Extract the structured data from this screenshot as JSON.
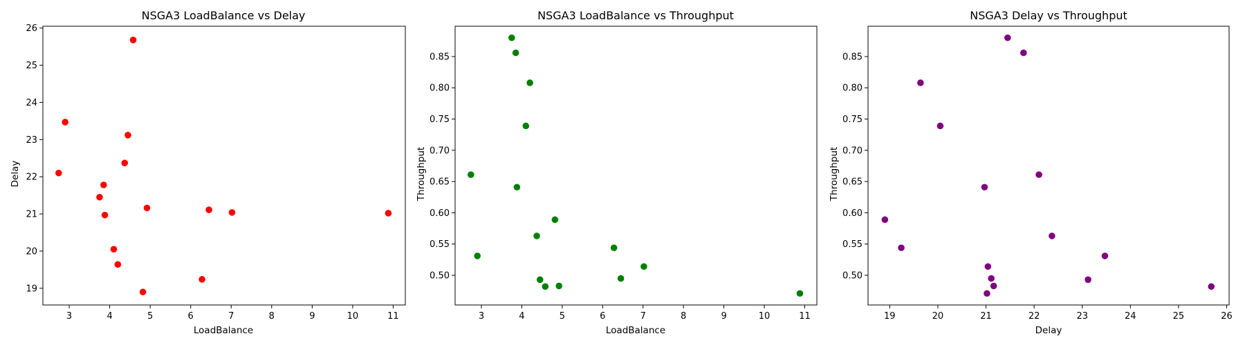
{
  "chart_data": [
    {
      "type": "scatter",
      "title": "NSGA3 LoadBalance vs Delay",
      "xlabel": "LoadBalance",
      "ylabel": "Delay",
      "xlim": [
        2.35,
        11.3
      ],
      "ylim": [
        18.55,
        26.05
      ],
      "xticks": [
        3,
        4,
        5,
        6,
        7,
        8,
        9,
        10,
        11
      ],
      "yticks": [
        19,
        20,
        21,
        22,
        23,
        24,
        25,
        26
      ],
      "color": "#ff0000",
      "points": [
        {
          "x": 4.58,
          "y": 25.68
        },
        {
          "x": 2.9,
          "y": 23.47
        },
        {
          "x": 4.45,
          "y": 23.12
        },
        {
          "x": 4.37,
          "y": 22.37
        },
        {
          "x": 2.74,
          "y": 22.1
        },
        {
          "x": 3.85,
          "y": 21.78
        },
        {
          "x": 3.75,
          "y": 21.45
        },
        {
          "x": 4.92,
          "y": 21.16
        },
        {
          "x": 6.45,
          "y": 21.11
        },
        {
          "x": 7.02,
          "y": 21.04
        },
        {
          "x": 10.88,
          "y": 21.02
        },
        {
          "x": 3.88,
          "y": 20.97
        },
        {
          "x": 4.1,
          "y": 20.05
        },
        {
          "x": 4.2,
          "y": 19.64
        },
        {
          "x": 6.28,
          "y": 19.24
        },
        {
          "x": 4.82,
          "y": 18.9
        }
      ]
    },
    {
      "type": "scatter",
      "title": "NSGA3 LoadBalance vs Throughput",
      "xlabel": "LoadBalance",
      "ylabel": "Throughput",
      "xlim": [
        2.35,
        11.3
      ],
      "ylim": [
        0.4525,
        0.8985
      ],
      "xticks": [
        3,
        4,
        5,
        6,
        7,
        8,
        9,
        10,
        11
      ],
      "yticks": [
        0.5,
        0.55,
        0.6,
        0.65,
        0.7,
        0.75,
        0.8,
        0.85
      ],
      "ytick_labels": [
        "0.50",
        "0.55",
        "0.60",
        "0.65",
        "0.70",
        "0.75",
        "0.80",
        "0.85"
      ],
      "color": "#008000",
      "points": [
        {
          "x": 3.75,
          "y": 0.88
        },
        {
          "x": 3.85,
          "y": 0.856
        },
        {
          "x": 4.2,
          "y": 0.808
        },
        {
          "x": 4.1,
          "y": 0.739
        },
        {
          "x": 2.74,
          "y": 0.661
        },
        {
          "x": 3.88,
          "y": 0.641
        },
        {
          "x": 4.82,
          "y": 0.589
        },
        {
          "x": 4.37,
          "y": 0.563
        },
        {
          "x": 6.28,
          "y": 0.544
        },
        {
          "x": 2.9,
          "y": 0.531
        },
        {
          "x": 7.02,
          "y": 0.514
        },
        {
          "x": 6.45,
          "y": 0.495
        },
        {
          "x": 4.45,
          "y": 0.493
        },
        {
          "x": 4.58,
          "y": 0.482
        },
        {
          "x": 4.92,
          "y": 0.483
        },
        {
          "x": 10.88,
          "y": 0.471
        }
      ]
    },
    {
      "type": "scatter",
      "title": "NSGA3 Delay vs Throughput",
      "xlabel": "Delay",
      "ylabel": "Throughput",
      "xlim": [
        18.55,
        26.05
      ],
      "ylim": [
        0.4525,
        0.8985
      ],
      "xticks": [
        19,
        20,
        21,
        22,
        23,
        24,
        25,
        26
      ],
      "yticks": [
        0.5,
        0.55,
        0.6,
        0.65,
        0.7,
        0.75,
        0.8,
        0.85
      ],
      "ytick_labels": [
        "0.50",
        "0.55",
        "0.60",
        "0.65",
        "0.70",
        "0.75",
        "0.80",
        "0.85"
      ],
      "color": "#800080",
      "points": [
        {
          "x": 21.45,
          "y": 0.88
        },
        {
          "x": 21.78,
          "y": 0.856
        },
        {
          "x": 19.64,
          "y": 0.808
        },
        {
          "x": 20.05,
          "y": 0.739
        },
        {
          "x": 22.1,
          "y": 0.661
        },
        {
          "x": 20.97,
          "y": 0.641
        },
        {
          "x": 18.9,
          "y": 0.589
        },
        {
          "x": 22.37,
          "y": 0.563
        },
        {
          "x": 19.24,
          "y": 0.544
        },
        {
          "x": 23.47,
          "y": 0.531
        },
        {
          "x": 21.04,
          "y": 0.514
        },
        {
          "x": 21.11,
          "y": 0.495
        },
        {
          "x": 23.12,
          "y": 0.493
        },
        {
          "x": 21.16,
          "y": 0.483
        },
        {
          "x": 25.68,
          "y": 0.482
        },
        {
          "x": 21.02,
          "y": 0.471
        }
      ]
    }
  ]
}
